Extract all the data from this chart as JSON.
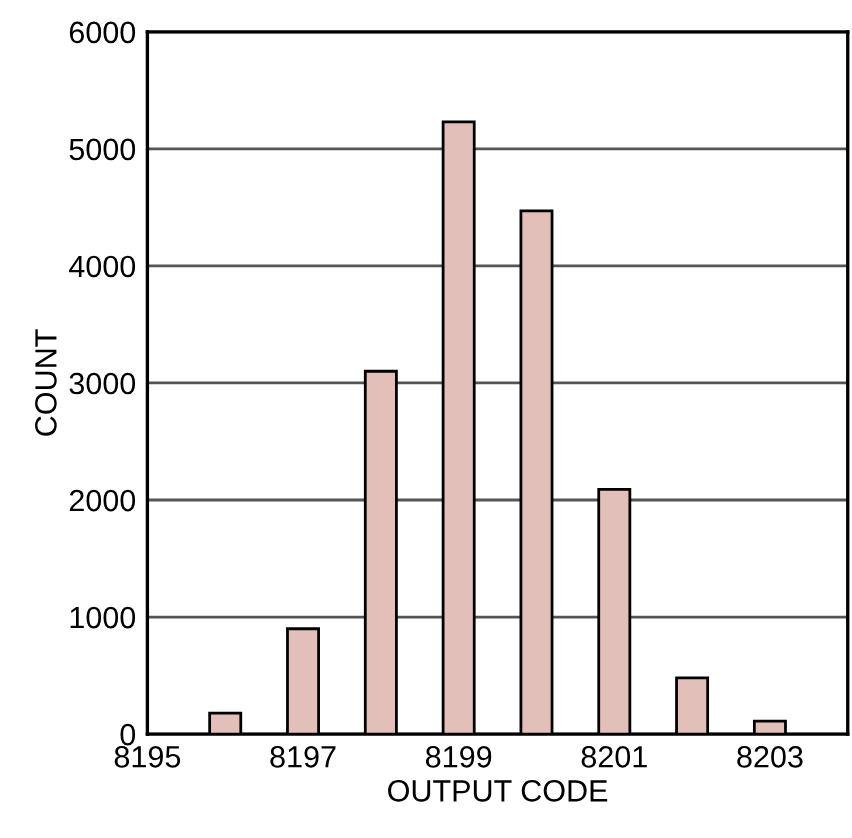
{
  "chart_data": {
    "type": "bar",
    "xlabel": "OUTPUT CODE",
    "ylabel": "COUNT",
    "x": [
      8196,
      8197,
      8198,
      8199,
      8200,
      8201,
      8202,
      8203
    ],
    "values": [
      180,
      900,
      3100,
      5230,
      4470,
      2090,
      480,
      110
    ],
    "color": "#e3bfba",
    "xlim": [
      8195,
      8204
    ],
    "xticks": [
      8195,
      8197,
      8199,
      8201,
      8203
    ],
    "ylim": [
      0,
      6000
    ],
    "yticks": [
      0,
      1000,
      2000,
      3000,
      4000,
      5000,
      6000
    ],
    "grid": "y"
  }
}
